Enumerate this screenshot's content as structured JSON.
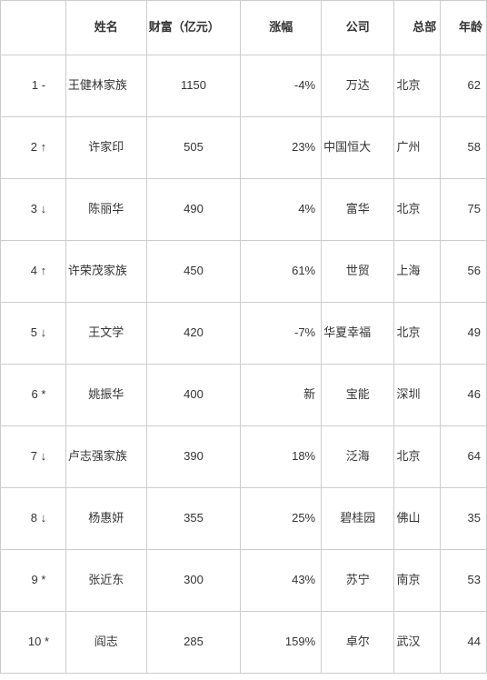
{
  "columns": {
    "rank": "",
    "name": "姓名",
    "wealth": "财富（亿元）",
    "change": "涨幅",
    "company": "公司",
    "hq": "总部",
    "age": "年龄"
  },
  "rows": [
    {
      "rank": "1 -",
      "name": "王健林家族",
      "wealth": "1150",
      "change": "-4%",
      "company": "万达",
      "hq": "北京",
      "age": "62",
      "name_long": true,
      "company_long": false
    },
    {
      "rank": "2 ↑",
      "name": "许家印",
      "wealth": "505",
      "change": "23%",
      "company": "中国恒大",
      "hq": "广州",
      "age": "58",
      "name_long": false,
      "company_long": true
    },
    {
      "rank": "3 ↓",
      "name": "陈丽华",
      "wealth": "490",
      "change": "4%",
      "company": "富华",
      "hq": "北京",
      "age": "75",
      "name_long": false,
      "company_long": false
    },
    {
      "rank": "4 ↑",
      "name": "许荣茂家族",
      "wealth": "450",
      "change": "61%",
      "company": "世贸",
      "hq": "上海",
      "age": "56",
      "name_long": true,
      "company_long": false
    },
    {
      "rank": "5 ↓",
      "name": "王文学",
      "wealth": "420",
      "change": "-7%",
      "company": "华夏幸福",
      "hq": "北京",
      "age": "49",
      "name_long": false,
      "company_long": true
    },
    {
      "rank": "6 *",
      "name": "姚振华",
      "wealth": "400",
      "change": "新",
      "company": "宝能",
      "hq": "深圳",
      "age": "46",
      "name_long": false,
      "company_long": false
    },
    {
      "rank": "7 ↓",
      "name": "卢志强家族",
      "wealth": "390",
      "change": "18%",
      "company": "泛海",
      "hq": "北京",
      "age": "64",
      "name_long": true,
      "company_long": false
    },
    {
      "rank": "8 ↓",
      "name": "杨惠妍",
      "wealth": "355",
      "change": "25%",
      "company": "碧桂园",
      "hq": "佛山",
      "age": "35",
      "name_long": false,
      "company_long": false
    },
    {
      "rank": "9 *",
      "name": "张近东",
      "wealth": "300",
      "change": "43%",
      "company": "苏宁",
      "hq": "南京",
      "age": "53",
      "name_long": false,
      "company_long": false
    },
    {
      "rank": "10 *",
      "name": "阎志",
      "wealth": "285",
      "change": "159%",
      "company": "卓尔",
      "hq": "武汉",
      "age": "44",
      "name_long": false,
      "company_long": false
    }
  ]
}
